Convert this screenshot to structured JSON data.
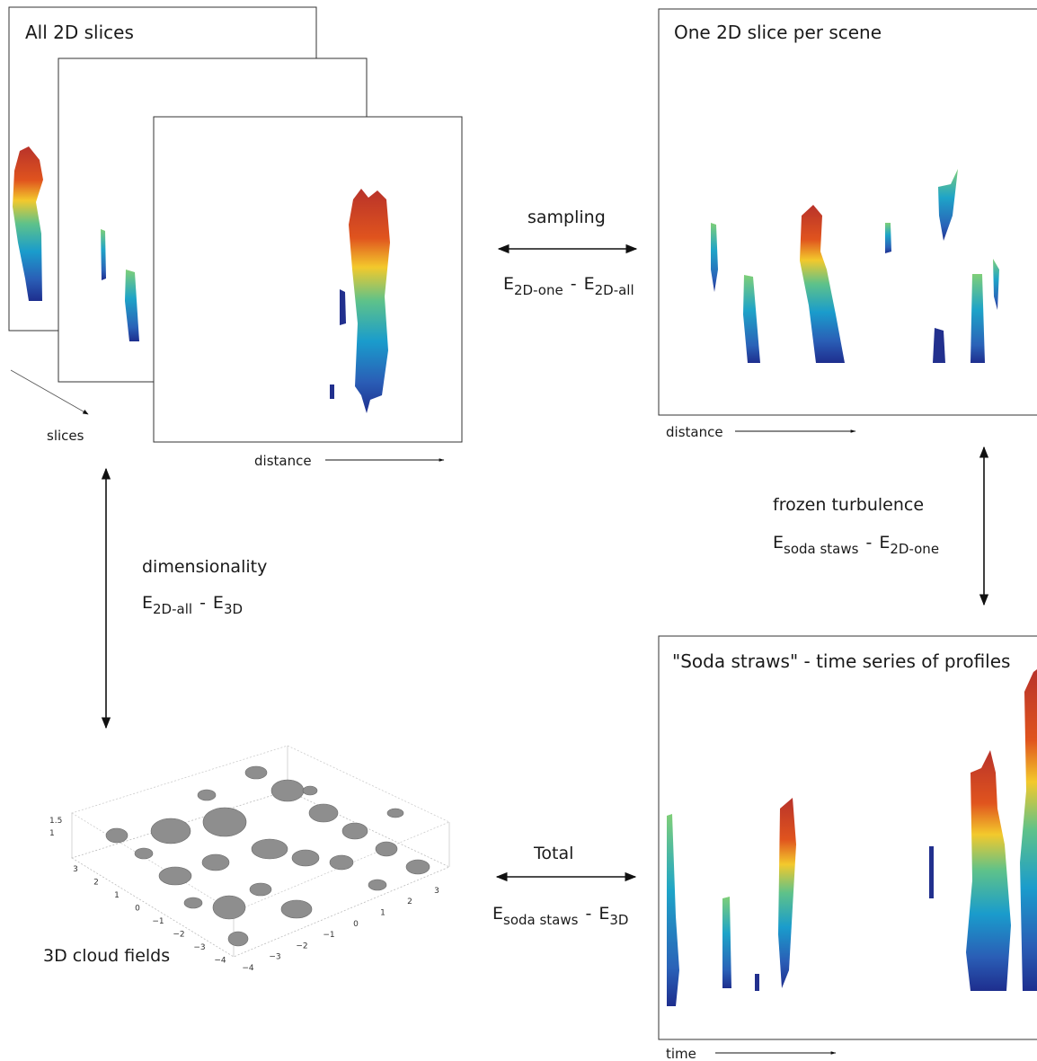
{
  "panels": {
    "all_slices": {
      "title": "All 2D slices",
      "axis_slices": "slices",
      "axis_distance": "distance"
    },
    "one_slice": {
      "title": "One 2D slice per scene",
      "axis_distance": "distance"
    },
    "soda_straws": {
      "title": "\"Soda straws\" - time series of profiles",
      "axis_time": "time"
    },
    "cloud_fields": {
      "title": "3D cloud fields",
      "z_ticks": [
        "1.5",
        "1"
      ],
      "y_ticks": [
        "3",
        "2",
        "1",
        "0",
        "−1",
        "−2",
        "−3",
        "−4"
      ],
      "x_ticks": [
        "−4",
        "−3",
        "−2",
        "−1",
        "0",
        "1",
        "2",
        "3"
      ]
    }
  },
  "transitions": [
    {
      "label": "sampling",
      "formula": {
        "terms": [
          {
            "base": "E",
            "sub": "2D-one"
          },
          {
            "base": "E",
            "sub": "2D-all"
          }
        ],
        "separator": "-"
      }
    },
    {
      "label": "frozen turbulence",
      "formula": {
        "terms": [
          {
            "base": "E",
            "sub": "soda staws"
          },
          {
            "base": "E",
            "sub": "2D-one"
          }
        ],
        "separator": "-"
      }
    },
    {
      "label": "dimensionality",
      "formula": {
        "terms": [
          {
            "base": "E",
            "sub": "2D-all"
          },
          {
            "base": "E",
            "sub": "3D"
          }
        ],
        "separator": "-"
      }
    },
    {
      "label": "Total",
      "formula": {
        "terms": [
          {
            "base": "E",
            "sub": "soda staws"
          },
          {
            "base": "E",
            "sub": "3D"
          }
        ],
        "separator": "-"
      }
    }
  ]
}
